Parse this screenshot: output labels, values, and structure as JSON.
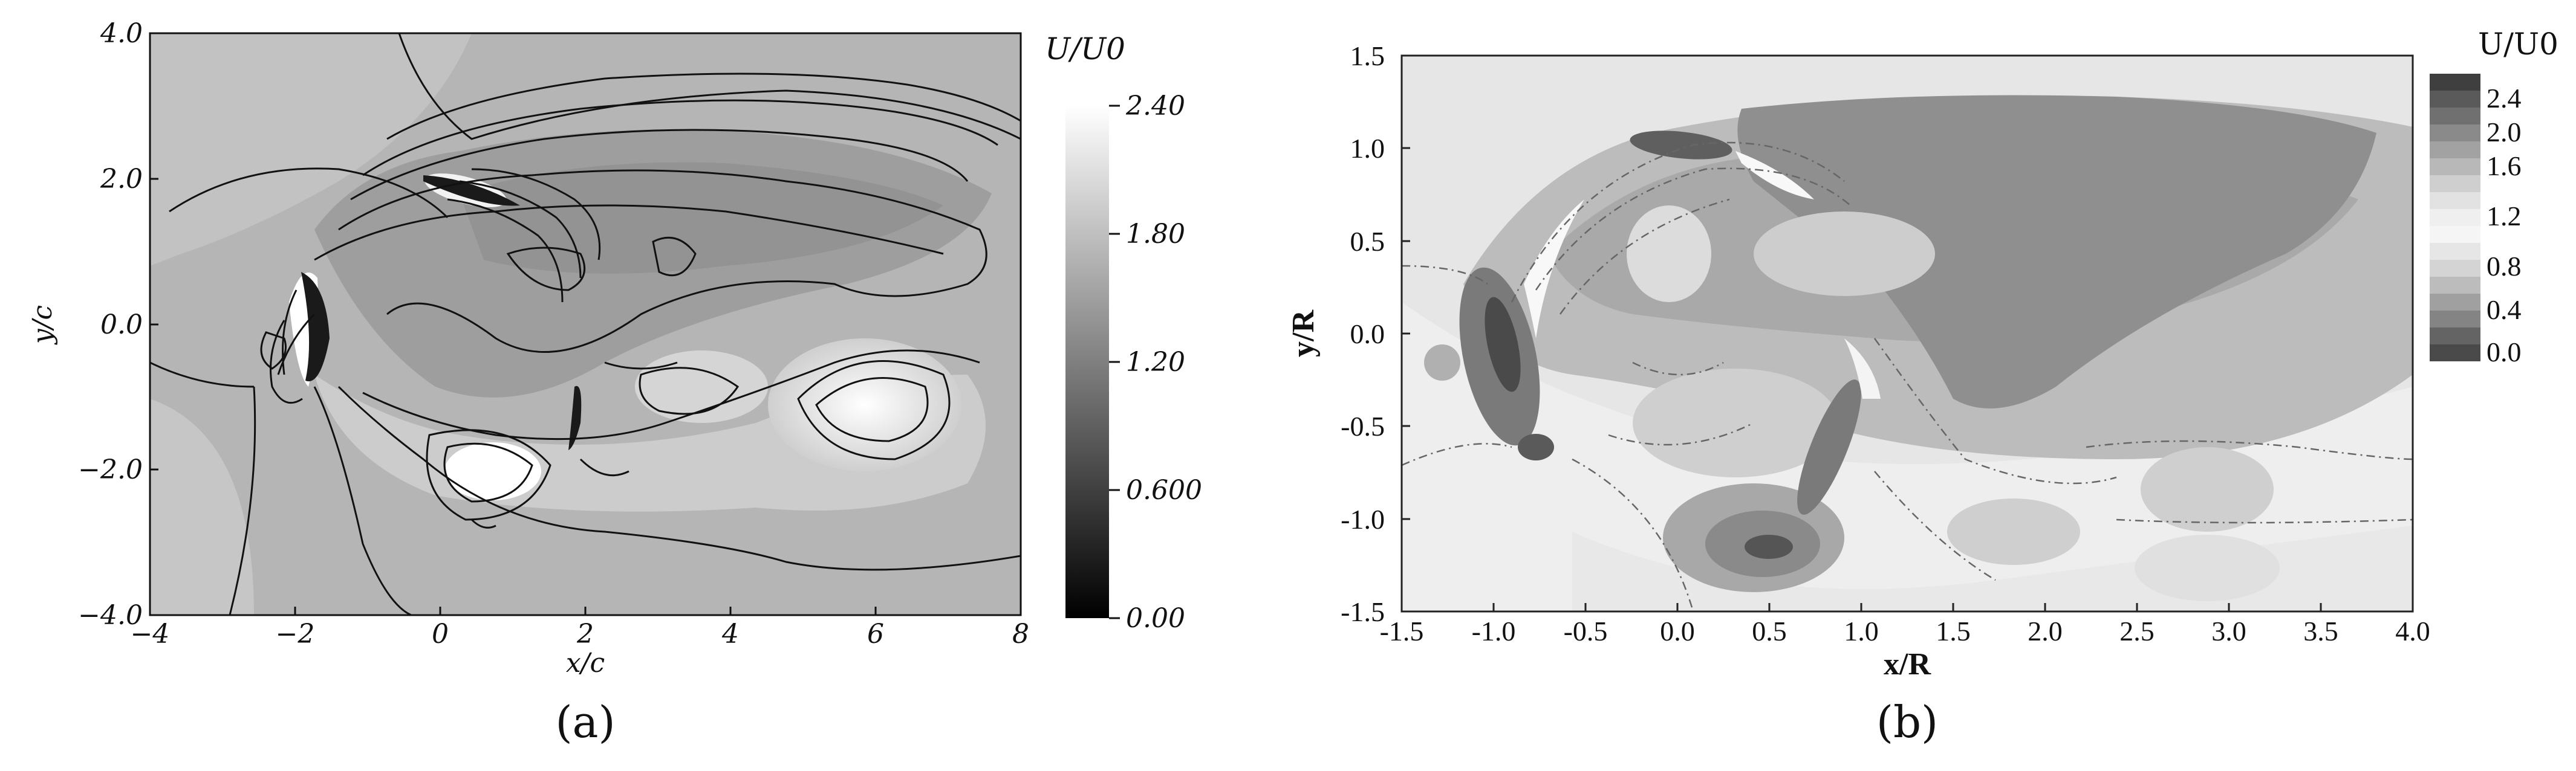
{
  "chart_data": [
    {
      "panel": "(a)",
      "type": "heatmap",
      "xlabel": "x/c",
      "ylabel": "y/c",
      "colorbar_label": "U/U0",
      "xlim": [
        -4,
        8
      ],
      "ylim": [
        -4,
        4
      ],
      "xticks": [
        "−4",
        "−2",
        "0",
        "2",
        "4",
        "6",
        "8"
      ],
      "yticks": [
        "4.0",
        "2.0",
        "0.0",
        "−2.0",
        "−4.0"
      ],
      "colorbar_ticks": [
        "2.40",
        "1.80",
        "1.20",
        "0.600",
        "0.00"
      ],
      "colorbar_range": [
        0,
        2.4
      ],
      "colors": {
        "low": "#000000",
        "high": "#ffffff",
        "background": "#b5b5b5"
      },
      "caption": "(a)"
    },
    {
      "panel": "(b)",
      "type": "heatmap",
      "xlabel": "x/R",
      "ylabel": "y/R",
      "colorbar_label": "U/U0",
      "xlim": [
        -1.5,
        4.0
      ],
      "ylim": [
        -1.5,
        1.5
      ],
      "xticks": [
        "-1.5",
        "-1.0",
        "-0.5",
        "0.0",
        "0.5",
        "1.0",
        "1.5",
        "2.0",
        "2.5",
        "3.0",
        "3.5",
        "4.0"
      ],
      "yticks": [
        "1.5",
        "1.0",
        "0.5",
        "0.0",
        "-0.5",
        "-1.0",
        "-1.5"
      ],
      "colorbar_ticks": [
        "2.4",
        "2.0",
        "1.6",
        "1.2",
        "0.8",
        "0.4",
        "0.0"
      ],
      "colorbar_range": [
        0,
        2.4
      ],
      "colors": {
        "light": "#efefef",
        "dark": "#4a4a4a"
      },
      "caption": "(b)"
    }
  ]
}
